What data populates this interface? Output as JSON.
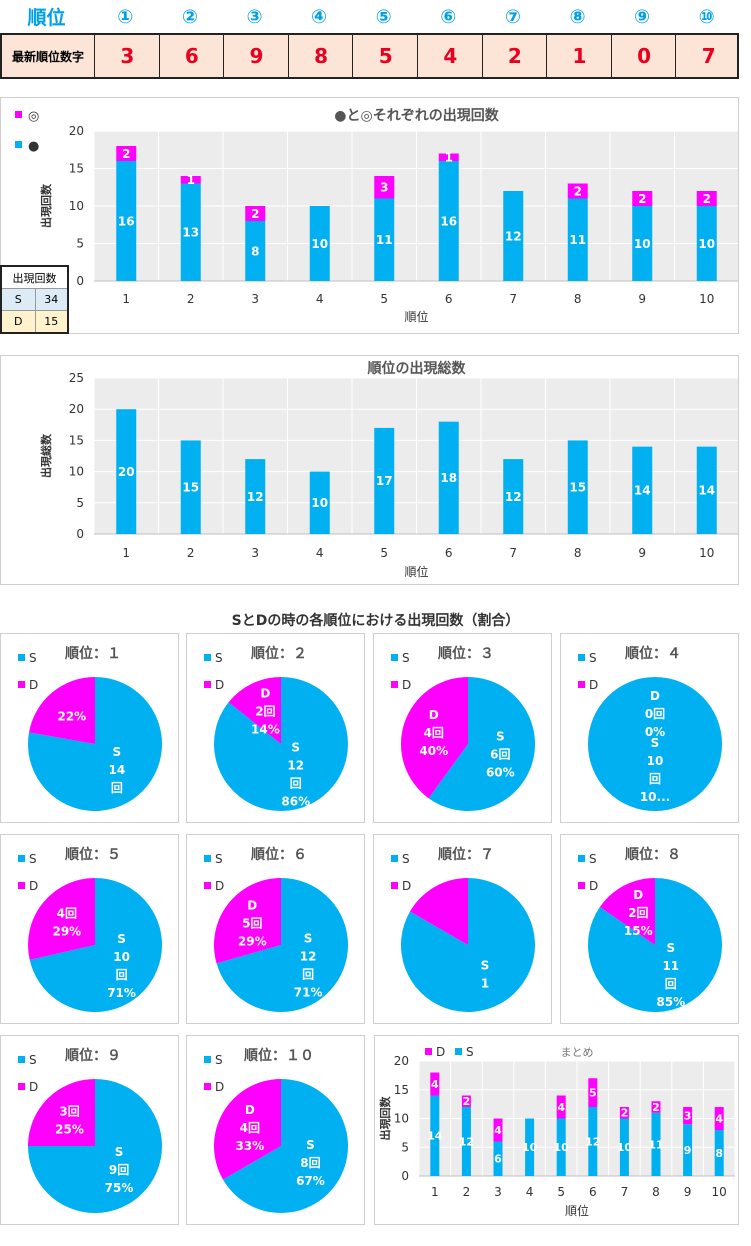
{
  "header": {
    "title": "順位",
    "circles": [
      "①",
      "②",
      "③",
      "④",
      "⑤",
      "⑥",
      "⑦",
      "⑧",
      "⑨",
      "⑩"
    ],
    "row_label": "最新順位数字",
    "digits": [
      "3",
      "6",
      "9",
      "8",
      "5",
      "4",
      "2",
      "1",
      "0",
      "7"
    ]
  },
  "counts_table": {
    "header": "出現回数",
    "rows": [
      {
        "key": "S",
        "value": "34"
      },
      {
        "key": "D",
        "value": "15"
      }
    ]
  },
  "pies_section_title": "SとDの時の各順位における出現回数（割合）",
  "colors": {
    "blue": "#00b0f0",
    "magenta": "#ff00ff",
    "plot_bg": "#ececec"
  },
  "chart_data": [
    {
      "type": "bar",
      "stacked": true,
      "title": "●と◎それぞれの出現回数",
      "xlabel": "順位",
      "ylabel": "出現回数",
      "ylim": [
        0,
        20
      ],
      "yticks": [
        0,
        5,
        10,
        15,
        20
      ],
      "categories": [
        "1",
        "2",
        "3",
        "4",
        "5",
        "6",
        "7",
        "8",
        "9",
        "10"
      ],
      "legend": [
        "◎",
        "●"
      ],
      "series": [
        {
          "name": "●",
          "values": [
            16,
            13,
            8,
            10,
            11,
            16,
            12,
            11,
            10,
            10
          ]
        },
        {
          "name": "◎",
          "values": [
            2,
            1,
            2,
            0,
            3,
            1,
            0,
            2,
            2,
            2
          ]
        }
      ]
    },
    {
      "type": "bar",
      "title": "順位の出現総数",
      "xlabel": "順位",
      "ylabel": "出現総数",
      "ylim": [
        0,
        25
      ],
      "yticks": [
        0,
        5,
        10,
        15,
        20,
        25
      ],
      "categories": [
        "1",
        "2",
        "3",
        "4",
        "5",
        "6",
        "7",
        "8",
        "9",
        "10"
      ],
      "values": [
        20,
        15,
        12,
        10,
        17,
        18,
        12,
        15,
        14,
        14
      ]
    },
    {
      "type": "pie",
      "charts": [
        {
          "title": "順位：１",
          "S": 14,
          "D": 4,
          "labels": {
            "S": [
              "S",
              "14",
              "回"
            ],
            "D": [
              "22%"
            ]
          }
        },
        {
          "title": "順位：２",
          "S": 12,
          "D": 2,
          "labels": {
            "S": [
              "S",
              "12",
              "回",
              "86%"
            ],
            "D": [
              "D",
              "2回",
              "14%"
            ]
          }
        },
        {
          "title": "順位：３",
          "S": 6,
          "D": 4,
          "labels": {
            "S": [
              "S",
              "6回",
              "60%"
            ],
            "D": [
              "D",
              "4回",
              "40%"
            ]
          }
        },
        {
          "title": "順位：４",
          "S": 10,
          "D": 0,
          "labels": {
            "S": [
              "S",
              "10",
              "回",
              "10..."
            ],
            "D": [
              "D",
              "0回",
              "0%"
            ]
          }
        },
        {
          "title": "順位：５",
          "S": 10,
          "D": 4,
          "labels": {
            "S": [
              "S",
              "10",
              "回",
              "71%"
            ],
            "D": [
              "4回",
              "29%"
            ]
          }
        },
        {
          "title": "順位：６",
          "S": 12,
          "D": 5,
          "labels": {
            "S": [
              "S",
              "12",
              "回",
              "71%"
            ],
            "D": [
              "D",
              "5回",
              "29%"
            ]
          }
        },
        {
          "title": "順位：７",
          "S": 10,
          "D": 2,
          "labels": {
            "S": [
              "S",
              "1"
            ],
            "D": []
          }
        },
        {
          "title": "順位：８",
          "S": 11,
          "D": 2,
          "labels": {
            "S": [
              "S",
              "11",
              "回",
              "85%"
            ],
            "D": [
              "D",
              "2回",
              "15%"
            ]
          }
        },
        {
          "title": "順位：９",
          "S": 9,
          "D": 3,
          "labels": {
            "S": [
              "S",
              "9回",
              "75%"
            ],
            "D": [
              "3回",
              "25%"
            ]
          }
        },
        {
          "title": "順位：１０",
          "S": 8,
          "D": 4,
          "labels": {
            "S": [
              "S",
              "8回",
              "67%"
            ],
            "D": [
              "D",
              "4回",
              "33%"
            ]
          }
        }
      ],
      "legend": [
        "S",
        "D"
      ]
    },
    {
      "type": "bar",
      "stacked": true,
      "title": "まとめ",
      "xlabel": "順位",
      "ylabel": "出現回数",
      "ylim": [
        0,
        20
      ],
      "yticks": [
        0,
        5,
        10,
        15,
        20
      ],
      "categories": [
        "1",
        "2",
        "3",
        "4",
        "5",
        "6",
        "7",
        "8",
        "9",
        "10"
      ],
      "legend": [
        "D",
        "S"
      ],
      "series": [
        {
          "name": "S",
          "values": [
            14,
            12,
            6,
            10,
            10,
            12,
            10,
            11,
            9,
            8
          ]
        },
        {
          "name": "D",
          "values": [
            4,
            2,
            4,
            0,
            4,
            5,
            2,
            2,
            3,
            4
          ]
        }
      ]
    }
  ]
}
